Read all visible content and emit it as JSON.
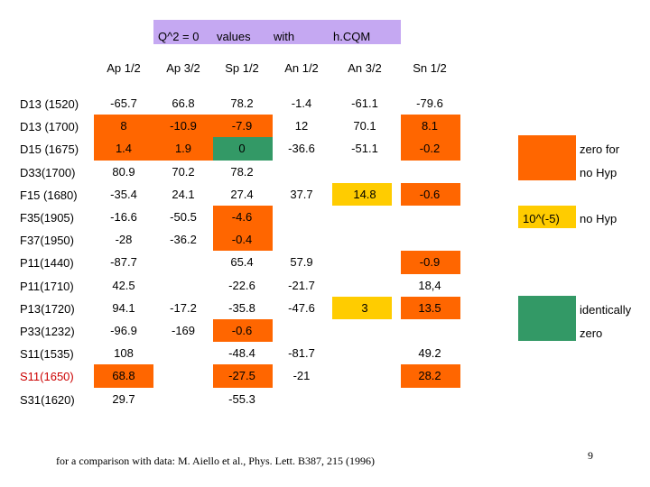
{
  "title": {
    "parts": [
      "Q^2 = 0",
      "values",
      "with",
      "h.CQM"
    ]
  },
  "columns": [
    "Ap 1/2",
    "Ap 3/2",
    "Sp 1/2",
    "An 1/2",
    "An 3/2",
    "Sn 1/2"
  ],
  "colors": {
    "title_bg": "#c5a8f2",
    "orange": "#ff6600",
    "yellow": "#ffcc00",
    "green": "#339966",
    "red_label": "#cc0000"
  },
  "rows": [
    {
      "label": "D13 (1520)",
      "values": [
        "-65.7",
        "66.8",
        "78.2",
        "-1.4",
        "-61.1",
        "-79.6"
      ],
      "fills": [
        "",
        "",
        "",
        "",
        "",
        ""
      ]
    },
    {
      "label": "D13 (1700)",
      "values": [
        "8",
        "-10.9",
        "-7.9",
        "12",
        "70.1",
        "8.1"
      ],
      "fills": [
        "orange",
        "orange",
        "orange",
        "",
        "",
        "orange"
      ]
    },
    {
      "label": "D15 (1675)",
      "values": [
        "1.4",
        "1.9",
        "0",
        "-36.6",
        "-51.1",
        "-0.2"
      ],
      "fills": [
        "orange",
        "orange",
        "green",
        "",
        "",
        "orange"
      ]
    },
    {
      "label": "D33(1700)",
      "values": [
        "80.9",
        "70.2",
        "78.2",
        "",
        "",
        ""
      ],
      "fills": [
        "",
        "",
        "",
        "",
        "",
        ""
      ]
    },
    {
      "label": "F15 (1680)",
      "values": [
        "-35.4",
        "24.1",
        "27.4",
        "37.7",
        "14.8",
        "-0.6"
      ],
      "fills": [
        "",
        "",
        "",
        "",
        "yellow",
        "orange"
      ]
    },
    {
      "label": "F35(1905)",
      "values": [
        "-16.6",
        "-50.5",
        "-4.6",
        "",
        "",
        ""
      ],
      "fills": [
        "",
        "",
        "orange",
        "",
        "",
        ""
      ]
    },
    {
      "label": "F37(1950)",
      "values": [
        "-28",
        "-36.2",
        "-0.4",
        "",
        "",
        ""
      ],
      "fills": [
        "",
        "",
        "orange",
        "",
        "",
        ""
      ]
    },
    {
      "label": "P11(1440)",
      "values": [
        "-87.7",
        "",
        "65.4",
        "57.9",
        "",
        "-0.9"
      ],
      "fills": [
        "",
        "",
        "",
        "",
        "",
        "orange"
      ]
    },
    {
      "label": "P11(1710)",
      "values": [
        "42.5",
        "",
        "-22.6",
        "-21.7",
        "",
        "18,4"
      ],
      "fills": [
        "",
        "",
        "",
        "",
        "",
        ""
      ]
    },
    {
      "label": "P13(1720)",
      "values": [
        "94.1",
        "-17.2",
        "-35.8",
        "-47.6",
        "3",
        "13.5"
      ],
      "fills": [
        "",
        "",
        "",
        "",
        "yellow",
        "orange"
      ]
    },
    {
      "label": "P33(1232)",
      "values": [
        "-96.9",
        "-169",
        "-0.6",
        "",
        "",
        ""
      ],
      "fills": [
        "",
        "",
        "orange",
        "",
        "",
        ""
      ]
    },
    {
      "label": "S11(1535)",
      "values": [
        "108",
        "",
        "-48.4",
        "-81.7",
        "",
        "49.2"
      ],
      "fills": [
        "",
        "",
        "",
        "",
        "",
        ""
      ]
    },
    {
      "label": "S11(1650)",
      "label_color": "red_label",
      "values": [
        "68.8",
        "",
        "-27.5",
        "-21",
        "",
        "28.2"
      ],
      "fills": [
        "orange",
        "",
        "orange",
        "",
        "",
        "orange"
      ]
    },
    {
      "label": "S31(1620)",
      "values": [
        "29.7",
        "",
        "-55.3",
        "",
        "",
        ""
      ],
      "fills": [
        "",
        "",
        "",
        "",
        "",
        ""
      ]
    }
  ],
  "legend": {
    "zero_for_line1": "zero for",
    "zero_for_line2": "no Hyp",
    "tenpow_label": "10^(-5)",
    "tenpow_desc": "no Hyp",
    "identically_line1": "identically",
    "identically_line2": "zero"
  },
  "footer": "for a comparison with data:  M. Aiello et al., Phys. Lett. B387, 215 (1996)",
  "page_number": "9"
}
